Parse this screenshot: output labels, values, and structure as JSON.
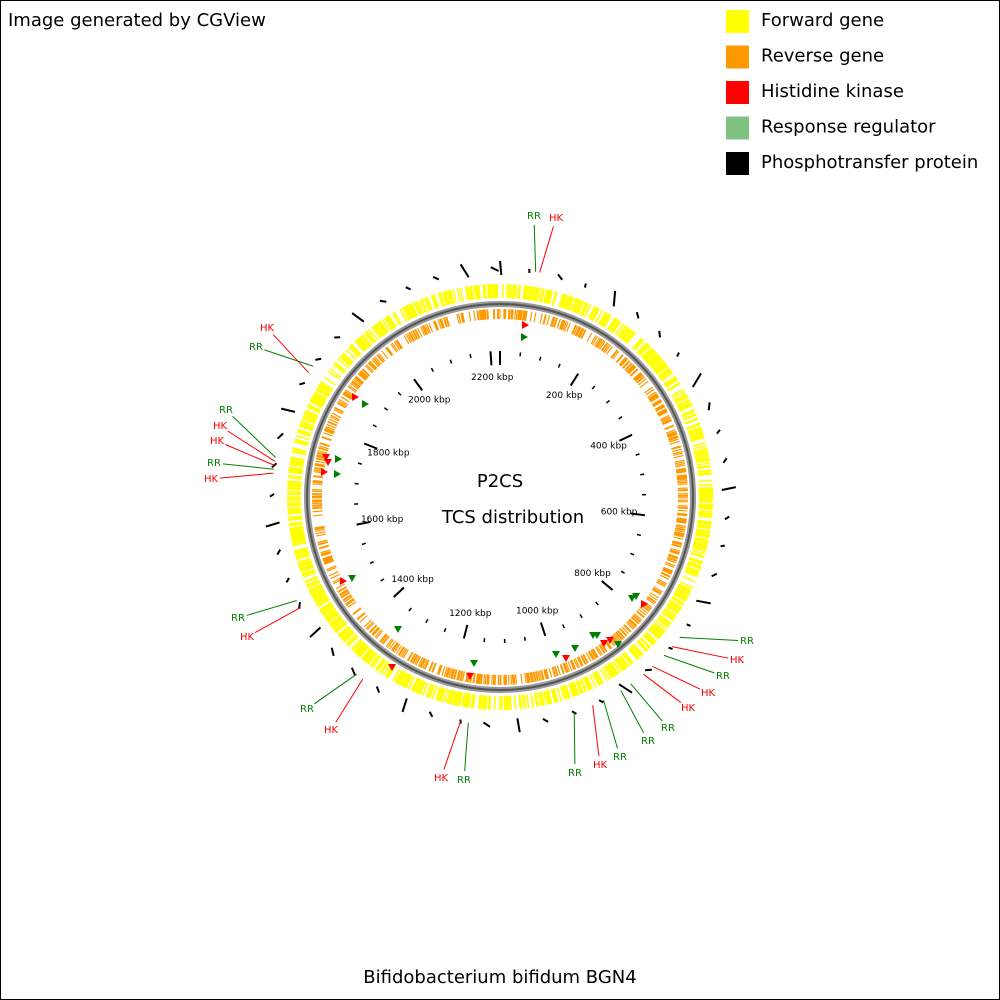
{
  "header": {
    "credit": "Image generated by CGView"
  },
  "legend": [
    {
      "label": "Forward gene",
      "color": "#ffff00"
    },
    {
      "label": "Reverse gene",
      "color": "#ff9900"
    },
    {
      "label": "Histidine kinase",
      "color": "#ff0000"
    },
    {
      "label": "Response regulator",
      "color": "#80c080"
    },
    {
      "label": "Phosphotransfer protein",
      "color": "#000000"
    }
  ],
  "map": {
    "title": "P2CS",
    "subtitle": "TCS distribution",
    "scale_labels": [
      "200 kbp",
      "400 kbp",
      "600 kbp",
      "800 kbp",
      "1000 kbp",
      "1200 kbp",
      "1400 kbp",
      "1600 kbp",
      "1800 kbp",
      "2000 kbp",
      "2200 kbp"
    ],
    "callouts": [
      "RR",
      "HK",
      "HK",
      "RR",
      "RR",
      "HK",
      "HK",
      "RR",
      "HK",
      "RR",
      "HK",
      "RR",
      "HK",
      "HK",
      "RR",
      "RR",
      "HK",
      "RR",
      "RR",
      "RR",
      "HK",
      "HK",
      "RR",
      "HK",
      "RR"
    ]
  },
  "caption": "Bifidobacterium bifidum BGN4"
}
